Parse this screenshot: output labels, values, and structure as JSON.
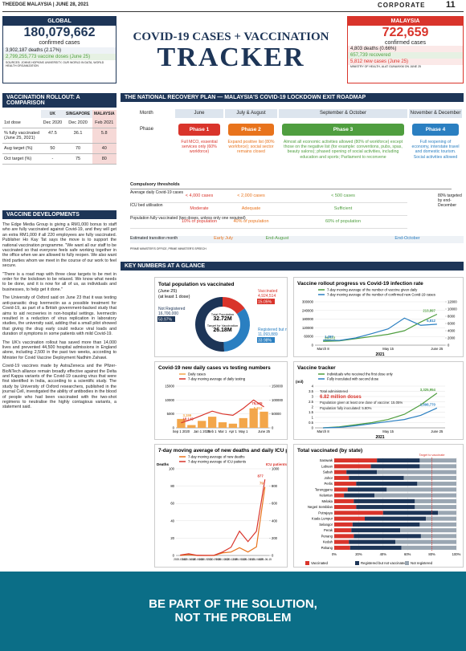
{
  "header": {
    "brand": "THEEDGE MALAYSIA",
    "date": "JUNE 28, 2021",
    "section": "CORPORATE",
    "page": "11"
  },
  "global": {
    "label": "GLOBAL",
    "cases": "180,079,662",
    "cases_label": "confirmed cases",
    "deaths": "3,902,187 deaths (2.17%)",
    "vaccines": "2,799,255,773 vaccine doses (June 25)",
    "source": "SOURCES: JOHNS HOPKINS UNIVERSITY, OUR WORLD IN DATA, WORLD HEALTH ORGANIZATION"
  },
  "title": {
    "line1": "COVID-19 CASES + VACCINATION",
    "line2": "TRACKER"
  },
  "malaysia": {
    "label": "MALAYSIA",
    "cases": "722,659",
    "cases_label": "confirmed cases",
    "deaths": "4,803 deaths (0.66%)",
    "recovered": "657,739 recovered",
    "new_cases": "5,812 new cases (June 25)",
    "source": "MINISTRY OF HEALTH, ALAT GUNA/KKM ON JUNE 25"
  },
  "rollout": {
    "title": "VACCINATION ROLLOUT: A COMPARISON",
    "columns": [
      "UK",
      "SINGAPORE",
      "MALAYSIA"
    ],
    "rows": [
      [
        "1st dose",
        "Dec 2020",
        "Dec 2020",
        "Feb 2021"
      ],
      [
        "% fully vaccinated (June 25, 2021)",
        "47.5",
        "36.1",
        "5.8"
      ],
      [
        "Aug target (%)",
        "50",
        "70",
        "40"
      ],
      [
        "Oct target (%)",
        "-",
        "75",
        "80"
      ]
    ]
  },
  "developments": {
    "title": "VACCINE DEVELOPMENTS",
    "paragraphs": [
      "The Edge Media Group is giving a RM1,000 bonus to staff who are fully vaccinated against Covid-19, and they will get an extra RM1,000 if all 220 employees are fully vaccinated. Publisher Ho Kay Tat says the move is to support the national vaccination programme. \"We want all our staff to be vaccinated so that everyone feels safe working together in the office when we are allowed to fully reopen. We also want third parties whom we meet in the course of our work to feel secure.",
      "\"There is a road map with three clear targets to be met in order for the lockdown to be relaxed. We know what needs to be done, and it is now for all of us, as individuals and businesses, to help get it done.\"",
      "The University of Oxford said on June 23 that it was testing anti-parasitic drug Ivermectin as a possible treatment for Covid-19, as part of a British government-backed study that aims to aid recoveries in non-hospital settings. Ivermectin resulted in a reduction of virus replication in laboratory studies, the university said, adding that a small pilot showed that giving the drug early could reduce viral loads and duration of symptoms in some patients with mild Covid-19.",
      "The UK's vaccination rollout has saved more than 14,000 lives and prevented 44,500 hospital admissions in England alone, including 2,500 in the past two weeks, according to Minister for Covid Vaccine Deployment Nadhim Zahawi.",
      "Covid-19 vaccines made by AstraZeneca and the Pfizer-BioNTech alliance remain broadly effective against the Delta and Kappa variants of the Covid-19 causing virus that were first identified in India, according to a scientific study. The study by University of Oxford researchers, published in the journal Cell, investigated the ability of antibodies in the blood of people who had been vaccinated with the two-shot regimens to neutralise the highly contagious variants, a statement said."
    ]
  },
  "roadmap": {
    "title": "THE NATIONAL RECOVERY PLAN — MALAYSIA'S COVID-19 LOCKDOWN EXIT ROADMAP",
    "month_label": "Month",
    "phase_label": "Phase",
    "months": [
      "June",
      "July & August",
      "September & October",
      "November & December"
    ],
    "phases": [
      {
        "name": "Phase 1",
        "desc": "Full MCO, essential services only (60% workforce)",
        "color": "#d9342b"
      },
      {
        "name": "Phase 2",
        "desc": "Expand positive list (80% workforce); social sector remains closed",
        "color": "#e8731c"
      },
      {
        "name": "Phase 3",
        "desc": "Almost all economic activities allowed (80% of workforce) except those on the negative list (for example: conventions, pubs, spas, beauty salons); phased opening of social activities, including education and sports; Parliament to reconvene",
        "color": "#4f9e3f"
      },
      {
        "name": "Phase 4",
        "desc": "Full reopening of economy, interstate travel and domestic tourism. Social activities allowed",
        "color": "#2a7fc1"
      }
    ],
    "thresholds_label": "Compulsory thresholds",
    "rows": [
      {
        "label": "Average daily Covid-19 cases",
        "values": [
          "< 4,000 cases",
          "< 2,000 cases",
          "< 500 cases"
        ]
      },
      {
        "label": "ICU bed utilisation",
        "values": [
          "Moderate",
          "Adequate",
          "Sufficient"
        ]
      },
      {
        "label": "Population fully vaccinated (two doses, unless only one required)",
        "values": [
          "10% of population",
          "40% of population",
          "60% of population"
        ]
      }
    ],
    "target_note": "80% targeted by end-December",
    "transition_label": "Estimated transition month",
    "transitions": [
      "Early July",
      "End-August",
      "End-October"
    ],
    "source": "PRIME MINISTER'S OFFICE, PRIME MINISTER'S SPEECH"
  },
  "key_title": "KEY NUMBERS AT A GLANCE",
  "charts": [
    {
      "type": "pie",
      "title": "Total population vs vaccinated",
      "subtitle": "(June 25)",
      "note": "(at least 1 dose)",
      "center": [
        "Total Population",
        "32.72M",
        "Target for Vaccination",
        "26.18M"
      ],
      "categories": [
        "Vaccinated",
        "Registered but not vaccinated",
        "Not Registered"
      ],
      "counts": [
        "4,924,514",
        "11,093,889",
        "16,700,000"
      ],
      "values": [
        15.05,
        33.98,
        50.97
      ],
      "value_labels": [
        "15.05%",
        "33.98%",
        "50.97%"
      ],
      "colors": [
        "#d9342b",
        "#2a7fc1",
        "#1d3557"
      ]
    },
    {
      "type": "line",
      "title": "Vaccine rollout progress vs Covid-19 infection rate",
      "xlabel": "2021",
      "categories": [
        "March 8",
        null,
        null,
        null,
        "May 15",
        null,
        null,
        "June 25"
      ],
      "ylim": [
        0,
        300000
      ],
      "yticks": [
        0,
        60000,
        120000,
        180000,
        240000,
        300000
      ],
      "y2lim": [
        0,
        12000
      ],
      "y2ticks": [
        0,
        2000,
        4000,
        6000,
        8000,
        10000,
        12000
      ],
      "series": [
        {
          "name": "7-day moving average of the number of vaccine given daily",
          "color": "#4f9e3f",
          "values": [
            26372,
            30000,
            45000,
            60000,
            75000,
            100000,
            160000,
            213897
          ],
          "value_labels": [
            "26,372",
            null,
            null,
            null,
            null,
            null,
            null,
            "213,897"
          ]
        },
        {
          "name": "7-day moving average of the number of confirmed new Covid-19 cases",
          "color": "#2a7fc1",
          "axis": "y2",
          "values": [
            1387,
            1300,
            2000,
            3200,
            4500,
            7500,
            5500,
            5812
          ],
          "value_labels": [
            "1,387",
            null,
            null,
            null,
            null,
            null,
            null,
            "5,812"
          ]
        }
      ]
    },
    {
      "type": "combo",
      "title": "Covid-19 new daily cases vs testing numbers",
      "categories": [
        "Sep 1 2020",
        null,
        "Jan 1 2021",
        "Feb 1",
        "Mar 1",
        "Apr 1",
        "May 1",
        null,
        "June 25"
      ],
      "ylim": [
        0,
        15000
      ],
      "yticks": [
        0,
        5000,
        10000,
        15000
      ],
      "y2lim": [
        0,
        150000
      ],
      "y2ticks": [
        0,
        50000,
        100000,
        150000
      ],
      "series": [
        {
          "name": "Daily cases",
          "kind": "bar",
          "color": "#f3a64a",
          "values": [
            3199,
            1000,
            2500,
            4000,
            2000,
            1500,
            3500,
            7000,
            5812
          ],
          "value_labels": [
            "3,199",
            null,
            null,
            null,
            null,
            null,
            null,
            null,
            "5,812"
          ]
        },
        {
          "name": "7-day moving average of daily testing",
          "kind": "line",
          "color": "#d9342b",
          "axis": "y2",
          "values": [
            18145,
            30000,
            45000,
            60000,
            50000,
            45000,
            70000,
            100000,
            75445
          ],
          "value_labels": [
            "18,145",
            null,
            null,
            null,
            null,
            null,
            null,
            null,
            "75,445"
          ]
        }
      ]
    },
    {
      "type": "line",
      "title": "Vaccine tracker",
      "ylabel": "(mil)",
      "xlabel": "2021",
      "categories": [
        "March 8",
        null,
        null,
        null,
        "May 15",
        null,
        null,
        "June 25"
      ],
      "ylim": [
        0,
        4
      ],
      "yticks": [
        0,
        0.5,
        1,
        1.5,
        2,
        2.5,
        3,
        3.5,
        4
      ],
      "notes": [
        "Total administered",
        "6.82 million doses",
        "Population given at least one dose of vaccine: 15.05%",
        "Population fully inoculated: 5.80%"
      ],
      "series": [
        {
          "name": "Individuals who received the first dose only",
          "color": "#4f9e3f",
          "values": [
            0,
            0.1,
            0.3,
            0.5,
            0.8,
            1.3,
            2.2,
            3.325954
          ],
          "value_labels": [
            null,
            null,
            null,
            null,
            null,
            null,
            null,
            "3,325,954"
          ]
        },
        {
          "name": "Fully inoculated with second dose",
          "color": "#2a7fc1",
          "values": [
            0,
            0.05,
            0.2,
            0.4,
            0.6,
            0.8,
            1.2,
            1.89877
          ],
          "value_labels": [
            null,
            null,
            null,
            null,
            null,
            null,
            null,
            "1,898,770"
          ]
        }
      ]
    },
    {
      "type": "line",
      "title": "7-day moving average of new deaths and daily ICU patients",
      "ylabel": "Deaths",
      "y2label": "ICU patients",
      "categories": [
        "2020-03-02",
        "2020-04-18",
        "2020-06-04",
        "2020-07-21",
        "2020-09-06",
        "2020-10-23",
        "2020-12-09",
        "2021-01-25",
        "2021-03-13",
        "2021-04-29",
        "2021-06-15"
      ],
      "ylim": [
        0,
        100
      ],
      "yticks": [
        0,
        20,
        40,
        60,
        80,
        100
      ],
      "y2lim": [
        0,
        1000
      ],
      "y2ticks": [
        0,
        200,
        400,
        600,
        800,
        1000
      ],
      "series": [
        {
          "name": "7-day moving average of new deaths",
          "color": "#e8731c",
          "values": [
            0,
            1,
            0,
            0,
            0,
            3,
            4,
            9,
            4,
            10,
            79
          ],
          "value_labels": [
            null,
            null,
            null,
            null,
            null,
            null,
            null,
            null,
            null,
            null,
            "79"
          ]
        },
        {
          "name": "7-day moving average of ICU patients",
          "color": "#d9342b",
          "axis": "y2",
          "values": [
            5,
            20,
            2,
            1,
            3,
            40,
            95,
            280,
            160,
            280,
            877
          ],
          "value_labels": [
            null,
            null,
            null,
            null,
            null,
            null,
            null,
            null,
            null,
            null,
            "877"
          ]
        }
      ]
    },
    {
      "type": "stacked-bar",
      "title": "Total vaccinated (by state)",
      "note": "Target to vaccinate",
      "categories": [
        "Sarawak",
        "Labuan",
        "Sabah",
        "Johor",
        "Perlis",
        "Terengganu",
        "Kelantan",
        "Melaka",
        "Negeri Sembilan",
        "Putrajaya",
        "Kuala Lumpur",
        "Selangor",
        "Perak",
        "Penang",
        "Kedah",
        "Pahang"
      ],
      "xlim": [
        0,
        100
      ],
      "xticks": [
        {
          "value": 0,
          "label": "0%"
        },
        {
          "value": 20,
          "label": "20%"
        },
        {
          "value": 40,
          "label": "40%"
        },
        {
          "value": 60,
          "label": "60%"
        },
        {
          "value": 80,
          "label": "80%"
        },
        {
          "value": 100,
          "label": "100%"
        }
      ],
      "series": [
        {
          "name": "Vaccinated",
          "color": "#d9342b",
          "values": [
            35,
            30,
            10,
            12,
            18,
            11,
            8,
            16,
            18,
            40,
            25,
            15,
            14,
            16,
            12,
            13
          ]
        },
        {
          "name": "Registered but not vaccinated",
          "color": "#1d3557",
          "values": [
            35,
            40,
            25,
            45,
            50,
            32,
            25,
            50,
            48,
            45,
            50,
            55,
            40,
            55,
            38,
            42
          ]
        },
        {
          "name": "Not registered",
          "color": "#9aa6b2",
          "values": [
            30,
            30,
            65,
            43,
            32,
            57,
            67,
            34,
            34,
            15,
            25,
            30,
            46,
            29,
            50,
            45
          ]
        }
      ]
    }
  ],
  "banner": {
    "line1": "BE PART OF THE SOLUTION,",
    "line2": "NOT THE PROBLEM"
  }
}
